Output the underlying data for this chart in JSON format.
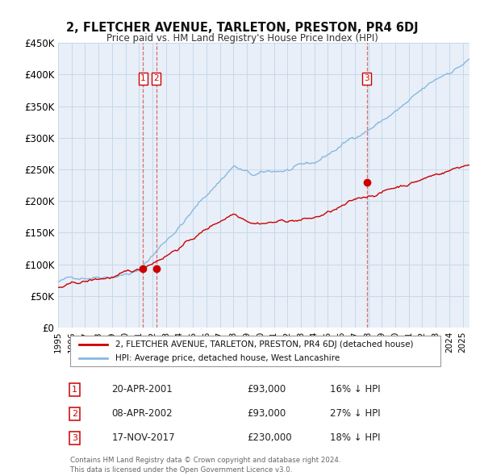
{
  "title": "2, FLETCHER AVENUE, TARLETON, PRESTON, PR4 6DJ",
  "subtitle": "Price paid vs. HM Land Registry's House Price Index (HPI)",
  "legend_property": "2, FLETCHER AVENUE, TARLETON, PRESTON, PR4 6DJ (detached house)",
  "legend_hpi": "HPI: Average price, detached house, West Lancashire",
  "ytick_labels": [
    "£0",
    "£50K",
    "£100K",
    "£150K",
    "£200K",
    "£250K",
    "£300K",
    "£350K",
    "£400K",
    "£450K"
  ],
  "ytick_values": [
    0,
    50000,
    100000,
    150000,
    200000,
    250000,
    300000,
    350000,
    400000,
    450000
  ],
  "ylim": [
    0,
    450000
  ],
  "xlim_start": 1995.0,
  "xlim_end": 2025.5,
  "property_color": "#cc0000",
  "hpi_color": "#88b8e0",
  "transaction_marker_color": "#cc0000",
  "vline_color": "#cc4444",
  "background_color": "#ffffff",
  "plot_bg_color": "#e8eff8",
  "grid_color": "#c8d8e8",
  "transactions": [
    {
      "num": 1,
      "date_label": "20-APR-2001",
      "date_x": 2001.3,
      "price": 93000,
      "price_label": "£93,000",
      "pct_label": "16% ↓ HPI"
    },
    {
      "num": 2,
      "date_label": "08-APR-2002",
      "date_x": 2002.27,
      "price": 93000,
      "price_label": "£93,000",
      "pct_label": "27% ↓ HPI"
    },
    {
      "num": 3,
      "date_label": "17-NOV-2017",
      "date_x": 2017.88,
      "price": 230000,
      "price_label": "£230,000",
      "pct_label": "18% ↓ HPI"
    }
  ],
  "footer_line1": "Contains HM Land Registry data © Crown copyright and database right 2024.",
  "footer_line2": "This data is licensed under the Open Government Licence v3.0."
}
